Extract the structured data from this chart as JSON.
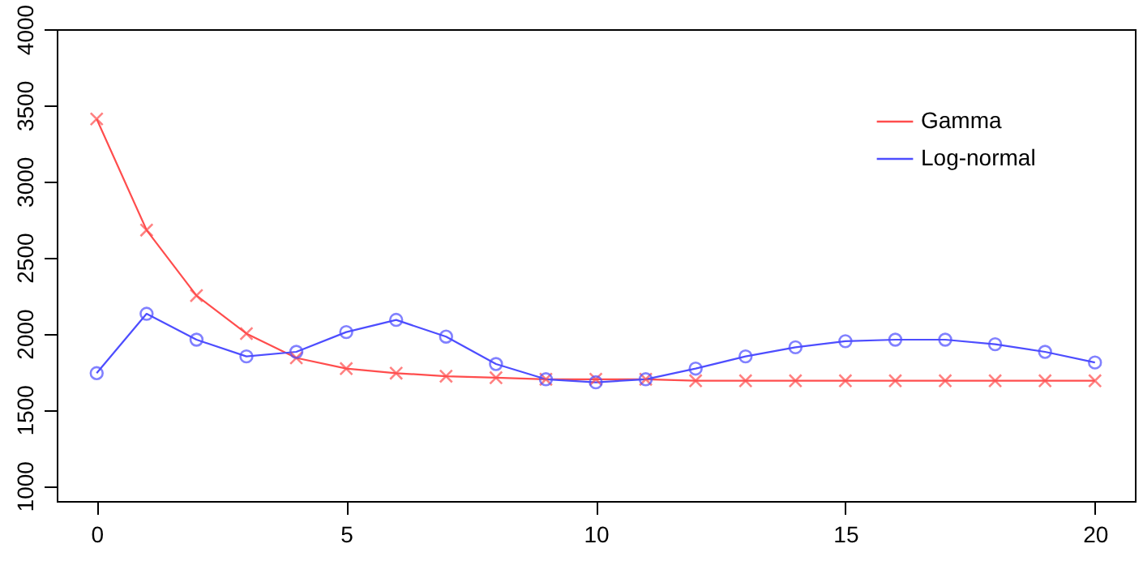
{
  "chart_data": {
    "type": "line",
    "x": [
      0,
      1,
      2,
      3,
      4,
      5,
      6,
      7,
      8,
      9,
      10,
      11,
      12,
      13,
      14,
      15,
      16,
      17,
      18,
      19,
      20
    ],
    "series": [
      {
        "name": "Gamma",
        "color": "#ff4d4d",
        "marker": "cross",
        "values": [
          3410,
          2680,
          2250,
          2000,
          1840,
          1770,
          1740,
          1720,
          1710,
          1700,
          1700,
          1700,
          1690,
          1690,
          1690,
          1690,
          1690,
          1690,
          1690,
          1690,
          1690
        ]
      },
      {
        "name": "Log-normal",
        "color": "#4d4dff",
        "marker": "circle",
        "values": [
          1740,
          2130,
          1960,
          1850,
          1880,
          2010,
          2090,
          1980,
          1800,
          1700,
          1680,
          1700,
          1770,
          1850,
          1910,
          1950,
          1960,
          1960,
          1930,
          1880,
          1810
        ]
      }
    ],
    "xlim": [
      -0.8,
      20.8
    ],
    "xticks": [
      0,
      5,
      10,
      15,
      20
    ],
    "ylim": [
      900,
      4000
    ],
    "yticks": [
      1000,
      1500,
      2000,
      2500,
      3000,
      3500,
      4000
    ],
    "grid": false,
    "legend": "top right",
    "line_style": "solid"
  }
}
